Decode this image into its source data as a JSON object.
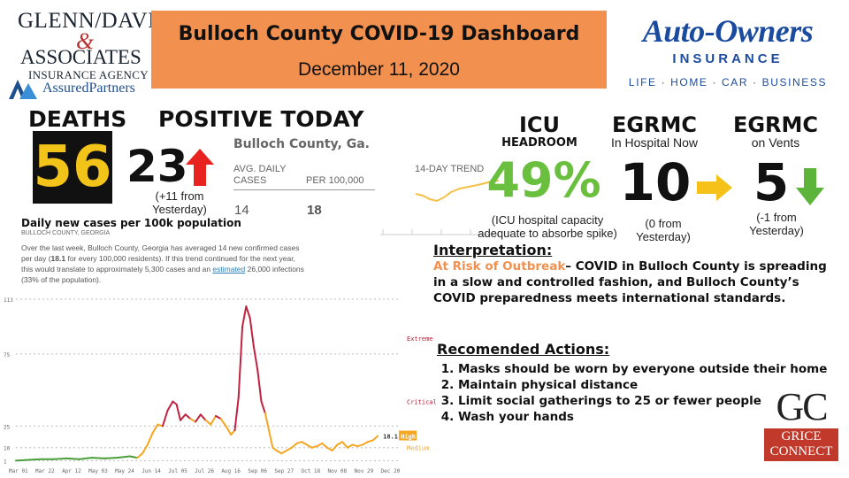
{
  "header": {
    "title": "Bulloch County COVID-19 Dashboard",
    "date": "December 11, 2020"
  },
  "sponsors": {
    "left": {
      "line1": "GLENN/DAVIS",
      "amp": "&",
      "line2": "ASSOCIATES",
      "line3": "INSURANCE AGENCY",
      "line4": "AssuredPartners"
    },
    "right": {
      "name": "Auto-Owners",
      "sub": "INSURANCE",
      "tagline": "LIFE · HOME · CAR · BUSINESS"
    },
    "bottom": {
      "mark": "GC",
      "line1": "GRICE",
      "line2": "CONNECT"
    }
  },
  "deaths": {
    "label": "DEATHS",
    "value": "56"
  },
  "positive": {
    "label": "POSITIVE TODAY",
    "value": "23",
    "note1": "(+11 from",
    "note2": "Yesterday)",
    "trend_icon": "arrow-up-icon",
    "trend_color": "#e8231f"
  },
  "bulloch": {
    "title": "Bulloch County, Ga.",
    "col1_header1": "AVG. DAILY",
    "col1_header2": "CASES",
    "col2_header": "PER 100,000",
    "col3_header": "14-DAY TREND",
    "avg_daily": "14",
    "per_100k": "18",
    "chart_title": "Daily new cases per 100k population",
    "chart_sub": "BULLOCH COUNTY, GEORGIA",
    "para_part1": "Over the last week, Bulloch County, Georgia has averaged 14 new confirmed cases per day (",
    "para_bold": "18.1",
    "para_part2": " for every 100,000 residents). If this trend continued for the next year, this would translate to approximately 5,300 cases and an ",
    "para_link": "estimated",
    "para_part3": " 26,000 infections (33% of the population)."
  },
  "icu": {
    "title": "ICU",
    "subtitle": "HEADROOM",
    "value": "49%",
    "note1": "(ICU hospital capacity",
    "note2": "adequate to absorbe spike)",
    "value_color": "#6abf3e"
  },
  "hospital": {
    "title": "EGRMC",
    "subtitle": "In Hospital Now",
    "value": "10",
    "note1": "(0 from",
    "note2": "Yesterday)",
    "trend_icon": "arrow-right-icon",
    "trend_color": "#f6c21a"
  },
  "vents": {
    "title": "EGRMC",
    "subtitle": "on Vents",
    "value": "5",
    "note1": "(-1 from",
    "note2": "Yesterday)",
    "trend_icon": "arrow-down-icon",
    "trend_color": "#5cb53a"
  },
  "interpretation": {
    "title": "Interpretation:",
    "risk": "At Risk of Outbreak",
    "text": "– COVID in Bulloch County is spreading in a slow and controlled fashion, and Bulloch County’s COVID preparedness meets international standards."
  },
  "actions": {
    "title": "Recomended Actions:",
    "items": [
      "Masks should be worn by everyone outside their home",
      "Maintain physical distance",
      "Limit social gatherings to 25 or fewer people",
      "Wash your hands"
    ]
  },
  "chart_data": {
    "type": "line",
    "title": "Daily new cases per 100k population",
    "subtitle": "BULLOCH COUNTY, GEORGIA",
    "ylim": [
      0,
      113
    ],
    "yticks": [
      "113",
      "75",
      "25",
      "10",
      "1"
    ],
    "ytick_values": [
      113,
      75,
      25,
      10,
      1
    ],
    "xticks": [
      "Mar 01",
      "Mar 22",
      "Apr 12",
      "May 03",
      "May 24",
      "Jun 14",
      "Jul 05",
      "Jul 26",
      "Aug 16",
      "Sep 06",
      "Sep 27",
      "Oct 18",
      "Nov 08",
      "Nov 29",
      "Dec 20"
    ],
    "xtick_days": [
      0,
      21,
      42,
      63,
      84,
      105,
      126,
      147,
      168,
      189,
      210,
      231,
      252,
      273,
      294
    ],
    "thresholds": [
      {
        "label": "Extreme",
        "value": 86,
        "color": "#b5162f"
      },
      {
        "label": "Critical",
        "value": 42,
        "color": "#b5162f"
      },
      {
        "label": "High",
        "value": 25,
        "color": "#f5a623"
      },
      {
        "label": "Medium",
        "value": 10,
        "color": "#f5a623"
      }
    ],
    "current": {
      "label": "18.1",
      "badge": "High",
      "value": 18.1
    },
    "colors": {
      "low": "#4a9e3a",
      "medium": "#f5a623",
      "high": "#f5a623",
      "critical": "#c0223f"
    },
    "series": [
      {
        "days": [
          0,
          10,
          20,
          30,
          40,
          50,
          60,
          70,
          80,
          90,
          96,
          100,
          104,
          108,
          112,
          116,
          120,
          124,
          127,
          130,
          134,
          138,
          142,
          146,
          150,
          154,
          158,
          162,
          166,
          170,
          173,
          176,
          179,
          182,
          185,
          188,
          191,
          194,
          197,
          200,
          203,
          206,
          210,
          214,
          218,
          222,
          226,
          230,
          234,
          238,
          242,
          246,
          250,
          254,
          258,
          262,
          266,
          270,
          274,
          278,
          282,
          286
        ],
        "values": [
          1,
          1.5,
          2,
          2,
          2.5,
          2,
          3,
          2.5,
          3,
          4,
          3,
          6,
          12,
          20,
          26,
          25,
          36,
          42,
          40,
          29,
          33,
          30,
          28,
          33,
          29,
          26,
          32,
          30,
          25,
          19,
          22,
          45,
          94,
          108,
          100,
          80,
          64,
          42,
          34,
          22,
          10,
          8,
          6,
          8,
          10,
          13,
          14,
          12,
          10,
          11,
          13,
          10,
          8,
          12,
          14,
          10,
          12,
          11,
          12,
          14,
          15,
          18.1
        ]
      }
    ]
  }
}
